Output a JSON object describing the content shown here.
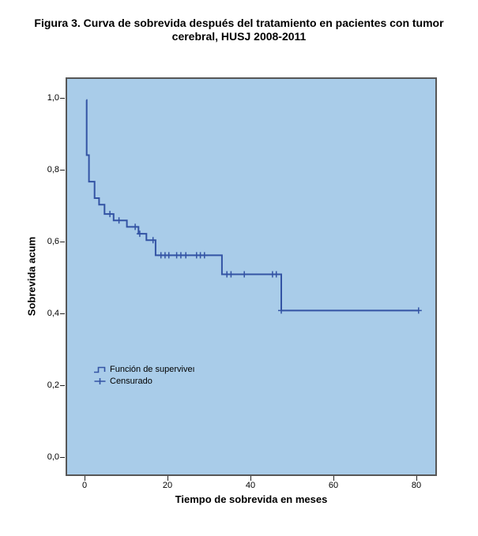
{
  "figure": {
    "title_line1": "Figura 3. Curva de sobrevida después del tratamiento en pacientes con tumor",
    "title_line2": "cerebral, HUSJ 2008-2011"
  },
  "colors": {
    "page_bg": "#ffffff",
    "panel_bg": "#a9cce9",
    "curve": "#3353a4",
    "frame": "#575757",
    "tick": "#222222",
    "text": "#000000"
  },
  "chart_data": {
    "type": "line",
    "variant": "kaplan_meier_step",
    "title": "Figura 3. Curva de sobrevida después del tratamiento en pacientes con tumor cerebral, HUSJ 2008-2011",
    "xlabel": "Tiempo de sobrevida en meses",
    "ylabel": "Sobrevida acum",
    "grid": false,
    "xlim": [
      -4.6,
      84.9
    ],
    "ylim": [
      -0.051,
      1.059
    ],
    "x_ticks": [
      0,
      20,
      40,
      60,
      80
    ],
    "y_tick_labels": [
      "0,0",
      "0,2",
      "0,4",
      "0,6",
      "0,8",
      "1,0"
    ],
    "y_tick_values": [
      0.0,
      0.2,
      0.4,
      0.6,
      0.8,
      1.0
    ],
    "legend_position": "inside-left-middle",
    "legend": [
      {
        "label": "Función de superviveı",
        "marker": "step-line"
      },
      {
        "label": "Censurado",
        "marker": "plus"
      }
    ],
    "series": [
      {
        "name": "Función de supervivencia",
        "type": "step",
        "points": [
          [
            0.0,
            1.0
          ],
          [
            0.1,
            0.847
          ],
          [
            0.65,
            0.773
          ],
          [
            2.0,
            0.727
          ],
          [
            3.1,
            0.709
          ],
          [
            4.4,
            0.683
          ],
          [
            6.6,
            0.665
          ],
          [
            9.8,
            0.647
          ],
          [
            12.6,
            0.628
          ],
          [
            14.5,
            0.61
          ],
          [
            16.7,
            0.568
          ],
          [
            32.7,
            0.515
          ],
          [
            47.0,
            0.414
          ]
        ],
        "end_time": 80.1
      }
    ],
    "censored": [
      [
        5.7,
        0.683
      ],
      [
        7.9,
        0.665
      ],
      [
        11.8,
        0.647
      ],
      [
        12.9,
        0.628
      ],
      [
        16.1,
        0.61
      ],
      [
        18.0,
        0.568
      ],
      [
        19.0,
        0.568
      ],
      [
        19.9,
        0.568
      ],
      [
        21.8,
        0.568
      ],
      [
        22.8,
        0.568
      ],
      [
        24.0,
        0.568
      ],
      [
        26.6,
        0.568
      ],
      [
        27.5,
        0.568
      ],
      [
        28.5,
        0.568
      ],
      [
        33.9,
        0.515
      ],
      [
        34.9,
        0.515
      ],
      [
        38.1,
        0.515
      ],
      [
        44.9,
        0.515
      ],
      [
        45.8,
        0.515
      ],
      [
        47.0,
        0.414
      ],
      [
        80.1,
        0.414
      ]
    ]
  }
}
